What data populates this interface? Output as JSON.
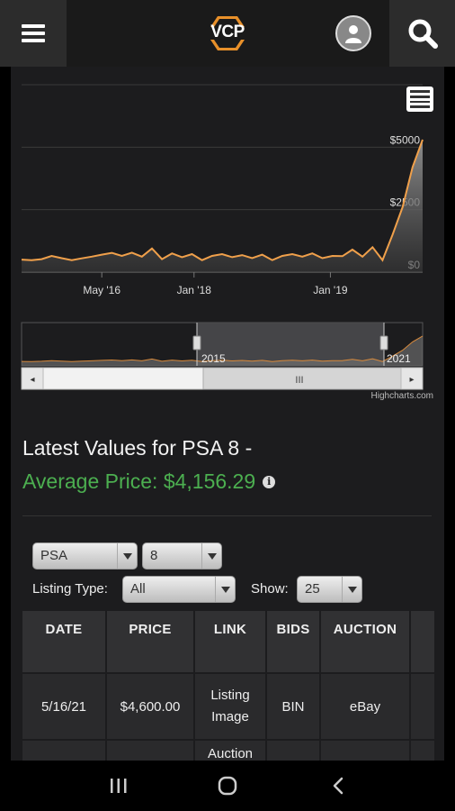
{
  "header": {
    "logo_text": "VCP",
    "menu_icon": "hamburger-icon",
    "profile_icon": "user-icon",
    "search_icon": "search-icon"
  },
  "chart_data": {
    "type": "area",
    "x_tick_labels": [
      "May '16",
      "Jan '18",
      "Jan '19"
    ],
    "y_tick_labels": [
      "$5000",
      "$2500",
      "$0"
    ],
    "y_ticks": [
      5000,
      2500,
      0
    ],
    "ylim": [
      0,
      7500
    ],
    "series": [
      {
        "color": "#f0a04b",
        "values": [
          500,
          480,
          520,
          650,
          560,
          480,
          550,
          620,
          700,
          770,
          650,
          780,
          620,
          950,
          520,
          750,
          600,
          720,
          480,
          650,
          720,
          600,
          680,
          560,
          700,
          480,
          650,
          720,
          620,
          750,
          560,
          650,
          640,
          900,
          620,
          1000,
          480,
          1500,
          2600,
          4200,
          5300
        ]
      }
    ],
    "navigator": {
      "labels": [
        "2015",
        "2021"
      ],
      "scroll_handle": "III",
      "left_arrow": "◂",
      "right_arrow": "▸"
    },
    "credit": "Highcharts.com",
    "export_menu_icon": "menu-icon"
  },
  "latest": {
    "title": "Latest Values for PSA 8 -",
    "average_label": "Average Price: $4,156.29",
    "info_icon": "info-icon",
    "info_glyph": "i"
  },
  "filters": {
    "grader": "PSA",
    "grade": "8",
    "listing_type_label": "Listing Type:",
    "listing_type_value": "All",
    "show_label": "Show:",
    "show_value": "25"
  },
  "table": {
    "headers": [
      "DATE",
      "PRICE",
      "LINK",
      "BIDS",
      "AUCTION"
    ],
    "rows": [
      {
        "date": "5/16/21",
        "price": "$4,600.00",
        "link_1": "Listing",
        "link_2": "Image",
        "bids": "BIN",
        "auction": "eBay"
      },
      {
        "link_1": "Auction"
      }
    ]
  },
  "navbar": {
    "recents_icon": "recents-icon",
    "home_icon": "home-icon",
    "back_icon": "back-icon"
  }
}
